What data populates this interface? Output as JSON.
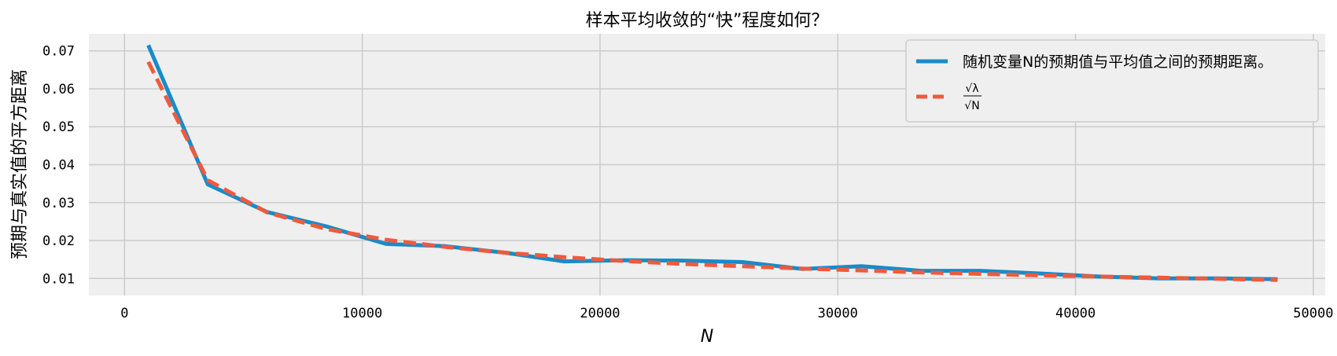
{
  "chart_data": {
    "type": "line",
    "title": "样本平均收敛的“快”程度如何？",
    "xlabel": "N",
    "ylabel": "预期与真实值的平方距离",
    "xlim": [
      -1500,
      50500
    ],
    "ylim": [
      0.0055,
      0.0745
    ],
    "xticks": [
      0,
      10000,
      20000,
      30000,
      40000,
      50000
    ],
    "xtick_labels": [
      "0",
      "10000",
      "20000",
      "30000",
      "40000",
      "50000"
    ],
    "yticks": [
      0.01,
      0.02,
      0.03,
      0.04,
      0.05,
      0.06,
      0.07
    ],
    "ytick_labels": [
      "0.01",
      "0.02",
      "0.03",
      "0.04",
      "0.05",
      "0.06",
      "0.07"
    ],
    "grid": true,
    "legend_position": "top-right",
    "x": [
      1000,
      3500,
      6000,
      8500,
      11000,
      13500,
      16000,
      18500,
      21000,
      23500,
      26000,
      28500,
      31000,
      33500,
      36000,
      38500,
      41000,
      43500,
      46000,
      48500
    ],
    "series": [
      {
        "name": "随机变量N的预期值与平均值之间的预期距离。",
        "style": "solid",
        "color": "#188bc9",
        "values": [
          0.0715,
          0.0348,
          0.0275,
          0.0237,
          0.0191,
          0.0185,
          0.0168,
          0.0145,
          0.0148,
          0.0147,
          0.0143,
          0.0125,
          0.0132,
          0.012,
          0.012,
          0.0113,
          0.0105,
          0.01,
          0.01,
          0.0098
        ]
      },
      {
        "name": "√λ / √N",
        "name_numerator": "√λ",
        "name_denominator": "√N",
        "style": "dashed",
        "color": "#f05a3c",
        "values": [
          0.0671,
          0.0359,
          0.0274,
          0.023,
          0.0202,
          0.0183,
          0.0168,
          0.0156,
          0.0146,
          0.0138,
          0.0132,
          0.0126,
          0.0121,
          0.0116,
          0.0112,
          0.0108,
          0.0105,
          0.0102,
          0.0099,
          0.0096
        ]
      }
    ]
  },
  "colors": {
    "plot_background": "#efefef",
    "grid": "#cbcbcb",
    "series_1": "#188bc9",
    "series_2": "#f05a3c"
  }
}
